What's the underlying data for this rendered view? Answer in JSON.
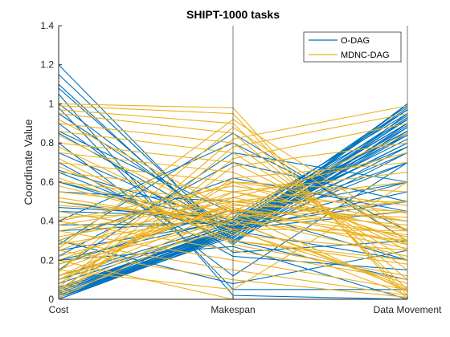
{
  "chart_data": {
    "type": "line",
    "title": "SHIPT-1000 tasks",
    "xlabel": "",
    "ylabel": "Coordinate Value",
    "categories": [
      "Cost",
      "Makespan",
      "Data Movement"
    ],
    "ylim": [
      0,
      1.4
    ],
    "yticks": [
      "0",
      "0.2",
      "0.4",
      "0.6",
      "0.8",
      "1",
      "1.2",
      "1.4"
    ],
    "grid": false,
    "legend_position": "top-right",
    "colors": {
      "O-DAG": "#0072BD",
      "MDNC-DAG": "#EDB120",
      "axis": "#262626"
    },
    "series": [
      {
        "name": "O-DAG",
        "lines": [
          [
            1.2,
            0.29,
            0.88
          ],
          [
            1.15,
            0.31,
            1.0
          ],
          [
            1.1,
            0.28,
            0.95
          ],
          [
            1.08,
            0.3,
            0.9
          ],
          [
            1.05,
            0.02,
            0.0
          ],
          [
            1.0,
            0.33,
            0.85
          ],
          [
            0.98,
            0.05,
            0.05
          ],
          [
            0.95,
            0.36,
            0.8
          ],
          [
            0.9,
            0.24,
            0.3
          ],
          [
            0.86,
            0.44,
            0.6
          ],
          [
            0.85,
            0.35,
            0.92
          ],
          [
            0.8,
            0.12,
            0.7
          ],
          [
            0.75,
            0.36,
            0.98
          ],
          [
            0.7,
            0.22,
            0.15
          ],
          [
            0.66,
            0.4,
            0.86
          ],
          [
            0.65,
            0.3,
            0.75
          ],
          [
            0.6,
            0.39,
            0.7
          ],
          [
            0.55,
            0.5,
            0.4
          ],
          [
            0.5,
            0.37,
            0.9
          ],
          [
            0.47,
            0.42,
            0.5
          ],
          [
            0.45,
            0.42,
            0.95
          ],
          [
            0.4,
            0.8,
            0.35
          ],
          [
            0.38,
            0.39,
            0.84
          ],
          [
            0.35,
            0.4,
            0.97
          ],
          [
            0.3,
            0.62,
            0.45
          ],
          [
            0.28,
            0.85,
            0.3
          ],
          [
            0.25,
            0.4,
            0.78
          ],
          [
            0.22,
            0.7,
            0.5
          ],
          [
            0.2,
            0.41,
            0.92
          ],
          [
            0.18,
            0.46,
            0.2
          ],
          [
            0.15,
            0.75,
            0.6
          ],
          [
            0.12,
            0.39,
            0.86
          ],
          [
            0.1,
            0.38,
            0.99
          ],
          [
            0.08,
            0.38,
            0.9
          ],
          [
            0.06,
            0.37,
            0.82
          ],
          [
            0.05,
            0.36,
            0.94
          ],
          [
            0.04,
            0.37,
            0.75
          ],
          [
            0.03,
            0.36,
            0.88
          ],
          [
            0.02,
            0.35,
            0.8
          ],
          [
            0.02,
            0.36,
            0.97
          ],
          [
            0.01,
            0.35,
            0.86
          ],
          [
            0.01,
            0.34,
            0.92
          ],
          [
            0.0,
            0.34,
            1.0
          ],
          [
            0.0,
            0.33,
            0.84
          ],
          [
            0.01,
            0.32,
            0.78
          ],
          [
            0.02,
            0.34,
            0.7
          ],
          [
            0.03,
            0.36,
            0.6
          ],
          [
            0.04,
            0.35,
            0.55
          ],
          [
            0.05,
            0.37,
            0.5
          ],
          [
            0.06,
            0.36,
            0.45
          ],
          [
            0.02,
            0.33,
            0.89
          ],
          [
            0.0,
            0.35,
            0.93
          ],
          [
            0.6,
            0.35,
            0.2
          ],
          [
            0.45,
            0.3,
            0.1
          ],
          [
            0.3,
            0.08,
            0.25
          ],
          [
            0.2,
            0.27,
            0.0
          ]
        ]
      },
      {
        "name": "MDNC-DAG",
        "lines": [
          [
            1.0,
            0.98,
            0.0
          ],
          [
            0.99,
            0.95,
            0.02
          ],
          [
            0.97,
            0.9,
            0.05
          ],
          [
            0.95,
            0.85,
            0.1
          ],
          [
            0.9,
            0.8,
            0.15
          ],
          [
            0.86,
            0.75,
            0.2
          ],
          [
            0.8,
            0.7,
            0.25
          ],
          [
            0.75,
            0.65,
            0.28
          ],
          [
            0.7,
            0.6,
            0.3
          ],
          [
            0.65,
            0.55,
            0.35
          ],
          [
            0.6,
            0.5,
            0.4
          ],
          [
            0.55,
            0.45,
            0.42
          ],
          [
            0.5,
            0.4,
            0.3
          ],
          [
            0.45,
            0.3,
            0.2
          ],
          [
            0.4,
            0.25,
            0.1
          ],
          [
            0.35,
            0.2,
            0.05
          ],
          [
            0.3,
            0.15,
            0.02
          ],
          [
            0.25,
            0.1,
            0.01
          ],
          [
            0.2,
            0.0,
            0.0
          ],
          [
            0.15,
            0.05,
            0.6
          ],
          [
            0.1,
            0.55,
            0.65
          ],
          [
            0.05,
            0.62,
            0.7
          ],
          [
            0.02,
            0.68,
            0.8
          ],
          [
            0.0,
            0.72,
            0.9
          ],
          [
            0.03,
            0.78,
            0.95
          ],
          [
            0.06,
            0.82,
            0.99
          ],
          [
            0.08,
            0.6,
            0.55
          ],
          [
            0.12,
            0.5,
            0.5
          ],
          [
            0.18,
            0.48,
            0.45
          ],
          [
            0.22,
            0.46,
            0.38
          ],
          [
            0.28,
            0.44,
            0.33
          ],
          [
            0.32,
            0.47,
            0.28
          ],
          [
            0.35,
            0.5,
            0.6
          ],
          [
            0.38,
            0.52,
            0.75
          ],
          [
            0.42,
            0.45,
            0.85
          ],
          [
            0.48,
            0.42,
            0.5
          ],
          [
            0.52,
            0.38,
            0.45
          ],
          [
            0.58,
            0.36,
            0.35
          ],
          [
            0.62,
            0.33,
            0.25
          ],
          [
            0.68,
            0.3,
            0.18
          ],
          [
            0.72,
            0.28,
            0.12
          ],
          [
            0.78,
            0.35,
            0.08
          ],
          [
            0.84,
            0.4,
            0.06
          ],
          [
            0.92,
            0.45,
            0.04
          ],
          [
            0.25,
            0.55,
            0.4
          ],
          [
            0.2,
            0.52,
            0.36
          ],
          [
            0.15,
            0.49,
            0.32
          ],
          [
            0.1,
            0.46,
            0.29
          ],
          [
            0.05,
            0.44,
            0.26
          ],
          [
            0.01,
            0.42,
            0.22
          ],
          [
            0.3,
            0.6,
            0.48
          ],
          [
            0.4,
            0.58,
            0.44
          ],
          [
            0.14,
            0.88,
            0.3
          ],
          [
            0.26,
            0.92,
            0.35
          ],
          [
            0.18,
            0.4,
            0.05
          ],
          [
            0.12,
            0.36,
            0.02
          ]
        ]
      }
    ]
  }
}
